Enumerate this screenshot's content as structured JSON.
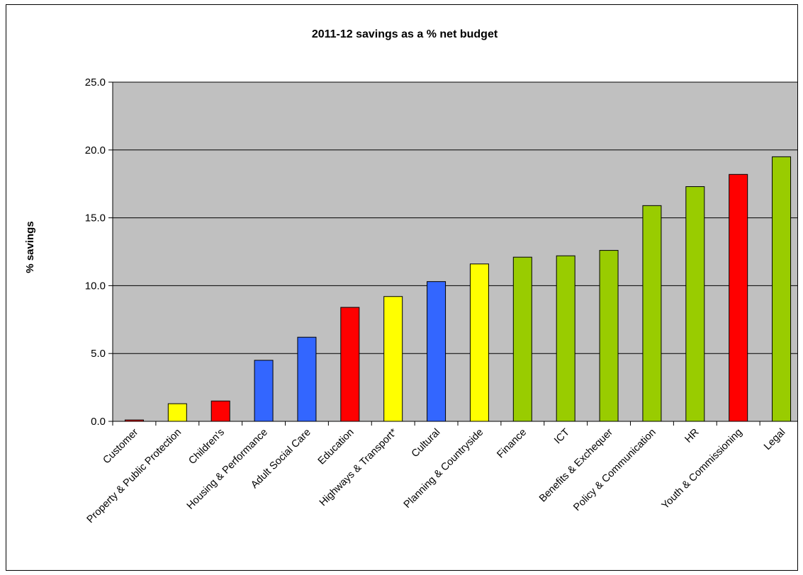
{
  "chart_data": {
    "type": "bar",
    "title": "2011-12 savings as a % net budget",
    "xlabel": "",
    "ylabel": "% savings",
    "ylim": [
      0,
      25
    ],
    "yticks": [
      "0.0",
      "5.0",
      "10.0",
      "15.0",
      "20.0",
      "25.0"
    ],
    "grid": true,
    "legend": "none",
    "plot_background": "#c0c0c0",
    "categories": [
      "Customer",
      "Property & Public Protection",
      "Children's",
      "Housing & Performance",
      "Adult Social Care",
      "Education",
      "Highways & Transport*",
      "Cultural",
      "Planning & Countryside",
      "Finance",
      "ICT",
      "Benefits & Exchequer",
      "Policy & Communication",
      "HR",
      "Youth & Commissioning",
      "Legal"
    ],
    "values": [
      0.1,
      1.3,
      1.5,
      4.5,
      6.2,
      8.4,
      9.2,
      10.3,
      11.6,
      12.1,
      12.2,
      12.6,
      15.9,
      17.3,
      18.2,
      19.5
    ],
    "bar_colors": [
      "#ff0000",
      "#ffff00",
      "#ff0000",
      "#3366ff",
      "#3366ff",
      "#ff0000",
      "#ffff00",
      "#3366ff",
      "#ffff00",
      "#99cc00",
      "#99cc00",
      "#99cc00",
      "#99cc00",
      "#99cc00",
      "#ff0000",
      "#99cc00"
    ]
  }
}
